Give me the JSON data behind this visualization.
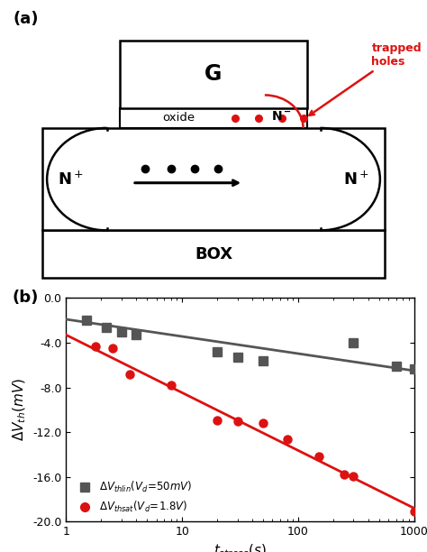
{
  "panel_a_label": "(a)",
  "panel_b_label": "(b)",
  "diagram": {
    "gate_label": "G",
    "oxide_label": "oxide",
    "nplus_left": "N",
    "nplus_right": "N",
    "nminus_label": "N",
    "box_label": "BOX",
    "trapped_holes_label": "trapped\nholes"
  },
  "scatter_gray_x": [
    1.5,
    2.2,
    3.0,
    4.0,
    20,
    30,
    50,
    300,
    700,
    1000
  ],
  "scatter_gray_y": [
    -2.0,
    -2.6,
    -3.0,
    -3.3,
    -4.8,
    -5.3,
    -5.6,
    -4.0,
    -6.1,
    -6.3
  ],
  "scatter_red_x": [
    1.8,
    2.5,
    3.5,
    8,
    20,
    30,
    50,
    80,
    150,
    250,
    300,
    1000
  ],
  "scatter_red_y": [
    -4.3,
    -4.5,
    -6.8,
    -7.8,
    -10.9,
    -11.0,
    -11.2,
    -12.6,
    -14.2,
    -15.8,
    -15.9,
    -19.1
  ],
  "fit_gray_x_start": 1,
  "fit_gray_x_end": 1000,
  "fit_gray_y_start": -1.9,
  "fit_gray_y_end": -6.5,
  "fit_red_x_start": 1,
  "fit_red_x_end": 1000,
  "fit_red_y_start": -3.3,
  "fit_red_y_end": -18.8,
  "ylim": [
    -20.0,
    0.0
  ],
  "yticks": [
    0.0,
    -4.0,
    -8.0,
    -12.0,
    -16.0,
    -20.0
  ],
  "xlim_lo": 1,
  "xlim_hi": 1000,
  "gray_color": "#555555",
  "red_color": "#dd1111",
  "background_color": "#ffffff"
}
